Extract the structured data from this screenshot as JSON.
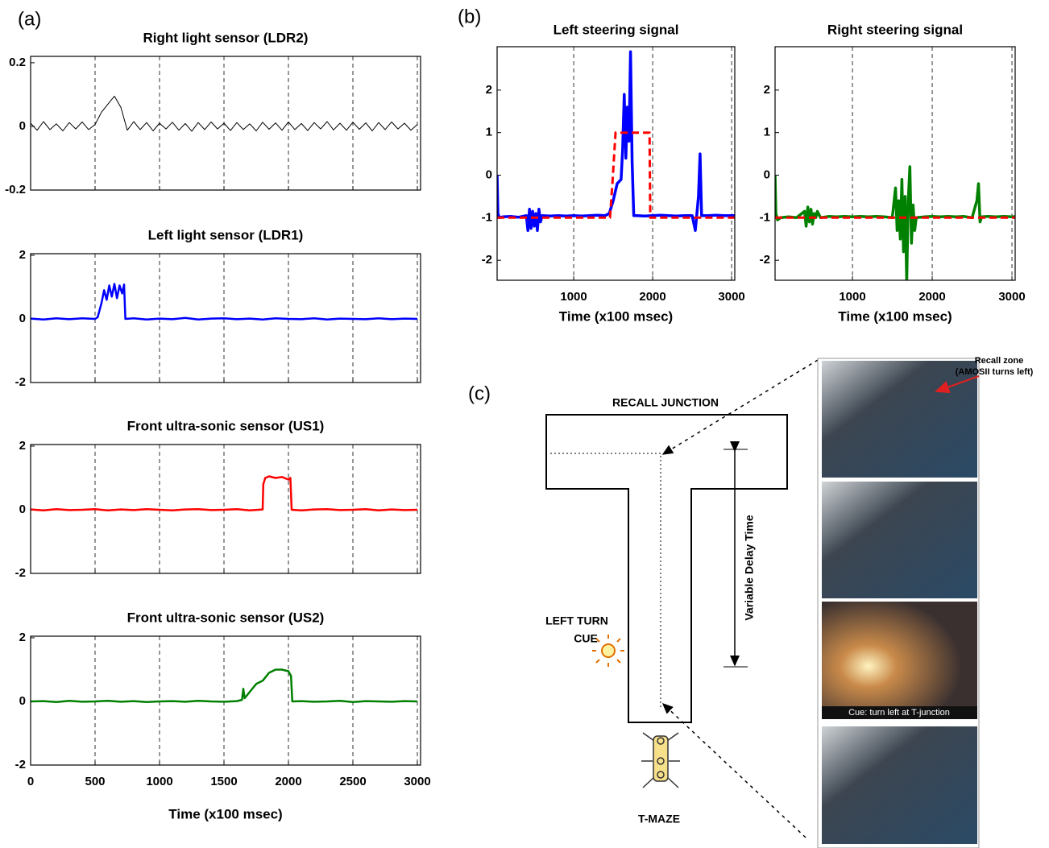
{
  "panel_labels": [
    "(a)",
    "(b)",
    "(c)"
  ],
  "chart_data": [
    {
      "type": "line",
      "title": "Right light sensor (LDR2)",
      "xlim": [
        0,
        3025
      ],
      "xticks": [
        0,
        500,
        1000,
        1500,
        2000,
        2500,
        3000
      ],
      "xtick_labels": false,
      "ylim": [
        -0.2,
        0.22
      ],
      "yticks": [
        -0.2,
        0,
        0.2
      ],
      "grid": true,
      "series": [
        {
          "color": "#000000",
          "width": 1,
          "x": [
            0,
            50,
            100,
            150,
            200,
            250,
            300,
            350,
            400,
            450,
            500,
            550,
            600,
            650,
            700,
            750,
            800,
            850,
            900,
            950,
            1000,
            1050,
            1100,
            1150,
            1200,
            1250,
            1300,
            1350,
            1400,
            1450,
            1500,
            1550,
            1600,
            1650,
            1700,
            1750,
            1800,
            1850,
            1900,
            1950,
            2000,
            2050,
            2100,
            2150,
            2200,
            2250,
            2300,
            2350,
            2400,
            2450,
            2500,
            2550,
            2600,
            2650,
            2700,
            2750,
            2800,
            2850,
            2900,
            2950,
            3000
          ],
          "values": [
            0.01,
            -0.012,
            0.015,
            -0.01,
            0.008,
            -0.014,
            0.012,
            -0.008,
            0.014,
            -0.01,
            0.006,
            0.045,
            0.07,
            0.095,
            0.06,
            -0.012,
            0.015,
            -0.01,
            0.012,
            -0.014,
            0.01,
            -0.008,
            0.013,
            -0.012,
            0.009,
            -0.015,
            0.012,
            -0.01,
            0.014,
            -0.008,
            0.01,
            -0.013,
            0.012,
            -0.01,
            0.008,
            -0.014,
            0.013,
            -0.009,
            0.011,
            -0.012,
            0.014,
            -0.01,
            0.009,
            -0.013,
            0.012,
            -0.008,
            0.015,
            -0.011,
            0.01,
            -0.012,
            0.013,
            -0.009,
            0.011,
            -0.014,
            0.012,
            -0.01,
            0.014,
            -0.008,
            0.01,
            -0.012,
            0.006
          ]
        }
      ]
    },
    {
      "type": "line",
      "title": "Left light sensor (LDR1)",
      "xlim": [
        0,
        3025
      ],
      "xticks": [
        0,
        500,
        1000,
        1500,
        2000,
        2500,
        3000
      ],
      "xtick_labels": false,
      "ylim": [
        -2,
        2.05
      ],
      "yticks": [
        -2,
        0,
        2
      ],
      "grid": true,
      "series": [
        {
          "color": "#0000ff",
          "width": 2.5,
          "x": [
            0,
            100,
            200,
            300,
            400,
            500,
            520,
            550,
            570,
            590,
            610,
            630,
            650,
            670,
            690,
            710,
            725,
            735,
            800,
            900,
            1000,
            1100,
            1200,
            1300,
            1400,
            1500,
            1600,
            1700,
            1800,
            1900,
            2000,
            2100,
            2200,
            2300,
            2400,
            2500,
            2600,
            2700,
            2800,
            2900,
            3000
          ],
          "values": [
            0.01,
            -0.02,
            0.02,
            -0.01,
            0.02,
            0.0,
            0.05,
            0.5,
            0.9,
            0.6,
            1.05,
            0.7,
            1.1,
            0.65,
            1.05,
            0.8,
            1.08,
            0.0,
            0.02,
            -0.02,
            0.01,
            -0.01,
            0.03,
            -0.02,
            0.01,
            0.02,
            -0.01,
            0.01,
            -0.02,
            0.02,
            0.0,
            -0.01,
            0.02,
            -0.02,
            0.01,
            0.0,
            -0.01,
            0.02,
            -0.01,
            0.01,
            0.0
          ]
        }
      ]
    },
    {
      "type": "line",
      "title": "Front ultra-sonic sensor (US1)",
      "xlim": [
        0,
        3025
      ],
      "xticks": [
        0,
        500,
        1000,
        1500,
        2000,
        2500,
        3000
      ],
      "xtick_labels": false,
      "ylim": [
        -2,
        2.05
      ],
      "yticks": [
        -2,
        0,
        2
      ],
      "grid": true,
      "series": [
        {
          "color": "#ff0000",
          "width": 2.5,
          "x": [
            0,
            100,
            200,
            300,
            400,
            500,
            600,
            700,
            800,
            900,
            1000,
            1100,
            1200,
            1300,
            1400,
            1500,
            1600,
            1700,
            1800,
            1805,
            1820,
            1850,
            1900,
            1950,
            2000,
            2015,
            2025,
            2100,
            2200,
            2300,
            2400,
            2500,
            2600,
            2700,
            2800,
            2900,
            3000
          ],
          "values": [
            0.01,
            -0.02,
            0.02,
            -0.01,
            0.0,
            0.02,
            -0.02,
            0.01,
            -0.01,
            0.02,
            0.0,
            -0.02,
            0.01,
            0.02,
            -0.01,
            0.0,
            0.02,
            -0.02,
            0.01,
            0.8,
            1.0,
            1.05,
            1.0,
            1.03,
            0.95,
            1.0,
            0.0,
            -0.02,
            0.01,
            0.02,
            -0.01,
            0.0,
            0.02,
            -0.02,
            0.01,
            -0.01,
            0.0
          ]
        }
      ]
    },
    {
      "type": "line",
      "title": "Front ultra-sonic sensor (US2)",
      "xlabel": "Time (x100 msec)",
      "xlim": [
        0,
        3025
      ],
      "xticks": [
        0,
        500,
        1000,
        1500,
        2000,
        2500,
        3000
      ],
      "ylim": [
        -2,
        2.05
      ],
      "yticks": [
        -2,
        0,
        2
      ],
      "grid": true,
      "series": [
        {
          "color": "#008000",
          "width": 2.5,
          "x": [
            0,
            100,
            200,
            300,
            400,
            500,
            600,
            700,
            800,
            900,
            1000,
            1100,
            1200,
            1300,
            1400,
            1500,
            1600,
            1640,
            1650,
            1660,
            1700,
            1750,
            1800,
            1850,
            1900,
            1950,
            2000,
            2020,
            2030,
            2100,
            2200,
            2300,
            2400,
            2500,
            2600,
            2700,
            2800,
            2900,
            3000
          ],
          "values": [
            0.0,
            0.01,
            -0.02,
            0.02,
            -0.01,
            0.0,
            0.02,
            -0.01,
            0.01,
            -0.02,
            0.0,
            0.01,
            -0.01,
            0.02,
            0.0,
            -0.01,
            0.01,
            0.05,
            0.4,
            0.1,
            0.3,
            0.55,
            0.65,
            0.9,
            1.0,
            1.0,
            0.95,
            0.8,
            0.0,
            0.01,
            -0.01,
            0.0,
            0.02,
            -0.02,
            0.01,
            0.0,
            -0.01,
            0.01,
            0.0
          ]
        }
      ]
    },
    {
      "type": "line",
      "title": "Left steering signal",
      "xlabel": "Time (x100 msec)",
      "xlim": [
        30,
        3040
      ],
      "xticks": [
        1000,
        2000,
        3000
      ],
      "ylim": [
        -2.47,
        3.02
      ],
      "yticks": [
        -2,
        -1,
        0,
        1,
        2
      ],
      "grid": true,
      "series": [
        {
          "color": "#0000ff",
          "width": 3.5,
          "x": [
            30,
            40,
            60,
            100,
            200,
            300,
            400,
            420,
            440,
            460,
            480,
            500,
            520,
            540,
            560,
            580,
            600,
            700,
            800,
            900,
            1000,
            1100,
            1200,
            1300,
            1400,
            1450,
            1500,
            1550,
            1600,
            1620,
            1640,
            1660,
            1680,
            1700,
            1720,
            1740,
            1760,
            1800,
            1900,
            2000,
            2100,
            2200,
            2300,
            2400,
            2500,
            2540,
            2560,
            2580,
            2600,
            2620,
            2700,
            2800,
            2900,
            3000,
            3040
          ],
          "values": [
            0.0,
            -0.9,
            -1.0,
            -0.98,
            -0.97,
            -0.99,
            -0.95,
            -1.3,
            -0.8,
            -1.25,
            -0.85,
            -1.2,
            -0.9,
            -1.3,
            -0.8,
            -1.1,
            -0.95,
            -0.96,
            -0.95,
            -0.96,
            -0.95,
            -0.96,
            -0.95,
            -0.94,
            -0.95,
            -0.9,
            -0.6,
            -0.2,
            -0.1,
            0.6,
            1.9,
            0.4,
            1.6,
            0.8,
            2.9,
            0.3,
            -0.95,
            -0.95,
            -0.96,
            -0.95,
            -0.94,
            -0.95,
            -0.96,
            -0.95,
            -0.95,
            -1.3,
            -0.9,
            -0.5,
            0.5,
            -0.95,
            -0.95,
            -0.94,
            -0.95,
            -0.95,
            -0.95
          ]
        },
        {
          "color": "#ff0000",
          "width": 3,
          "dashed": true,
          "x": [
            30,
            1460,
            1490,
            1530,
            1960,
            1970,
            3040
          ],
          "values": [
            -1,
            -1,
            -0.2,
            1,
            1,
            -1,
            -1
          ]
        }
      ]
    },
    {
      "type": "line",
      "title": "Right steering signal",
      "xlabel": "Time (x100 msec)",
      "xlim": [
        30,
        3040
      ],
      "xticks": [
        1000,
        2000,
        3000
      ],
      "ylim": [
        -2.47,
        3.02
      ],
      "yticks": [
        -2,
        -1,
        0,
        1,
        2
      ],
      "grid": true,
      "series": [
        {
          "color": "#008000",
          "width": 3.5,
          "x": [
            30,
            40,
            60,
            100,
            200,
            300,
            400,
            420,
            440,
            460,
            480,
            500,
            520,
            540,
            560,
            600,
            700,
            800,
            900,
            1000,
            1100,
            1200,
            1300,
            1400,
            1500,
            1540,
            1560,
            1580,
            1600,
            1620,
            1640,
            1660,
            1680,
            1700,
            1720,
            1740,
            1760,
            1780,
            1800,
            1900,
            2000,
            2100,
            2200,
            2300,
            2400,
            2500,
            2560,
            2580,
            2600,
            2620,
            2700,
            2800,
            2900,
            3000,
            3040
          ],
          "values": [
            0.0,
            -0.9,
            -1.05,
            -1.0,
            -0.98,
            -1.0,
            -0.85,
            -1.2,
            -0.75,
            -1.1,
            -0.8,
            -1.15,
            -0.9,
            -1.0,
            -0.85,
            -1.0,
            -0.97,
            -0.98,
            -0.97,
            -0.98,
            -0.97,
            -0.98,
            -0.97,
            -0.98,
            -1.0,
            -0.3,
            -1.3,
            -0.6,
            -1.5,
            -0.1,
            -1.8,
            -0.5,
            -2.5,
            -0.6,
            0.2,
            -1.6,
            -0.7,
            -1.3,
            -1.0,
            -0.98,
            -0.97,
            -0.98,
            -0.97,
            -0.98,
            -0.97,
            -1.0,
            -0.6,
            -0.2,
            -1.1,
            -0.98,
            -0.97,
            -0.98,
            -0.97,
            -0.98,
            -0.97
          ]
        },
        {
          "color": "#ff0000",
          "width": 3,
          "dashed": true,
          "x": [
            30,
            3040
          ],
          "values": [
            -1,
            -1
          ]
        }
      ]
    }
  ],
  "diagram": {
    "junction_label": "RECALL JUNCTION",
    "cue_label": [
      "LEFT TURN",
      "CUE"
    ],
    "delay_label": "Variable Delay Time",
    "maze_label": "T-MAZE",
    "recall_zone_label": [
      "Recall zone",
      "(AMOSII turns left)"
    ],
    "photo_caption": "Cue: turn left at T-junction"
  }
}
